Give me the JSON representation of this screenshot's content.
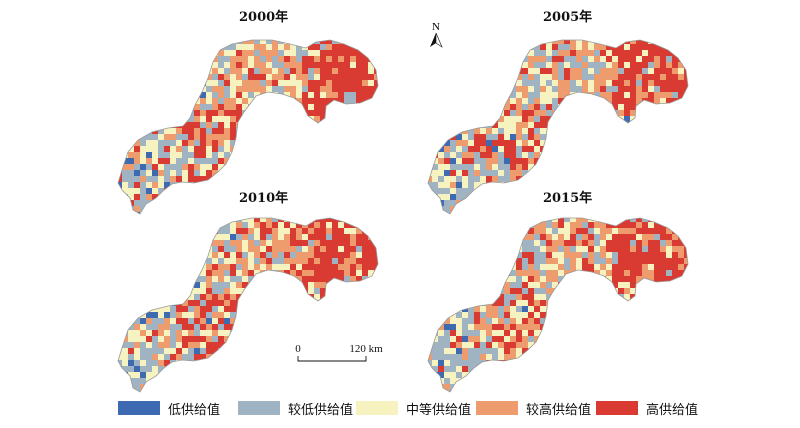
{
  "panels": [
    {
      "title": "2000年",
      "seed": 11
    },
    {
      "title": "2005年",
      "seed": 23
    },
    {
      "title": "2010年",
      "seed": 37
    },
    {
      "title": "2015年",
      "seed": 53
    }
  ],
  "north_arrow": {
    "label": "N"
  },
  "scale_bar": {
    "start_label": "0",
    "end_label": "120 km"
  },
  "legend": [
    {
      "label": "低供给值",
      "color": "#3d6ab0"
    },
    {
      "label": "较低供给值",
      "color": "#9fb3c2"
    },
    {
      "label": "中等供给值",
      "color": "#f6f3c0"
    },
    {
      "label": "较高供给值",
      "color": "#ee9b6e"
    },
    {
      "label": "高供给值",
      "color": "#d93a32"
    }
  ]
}
